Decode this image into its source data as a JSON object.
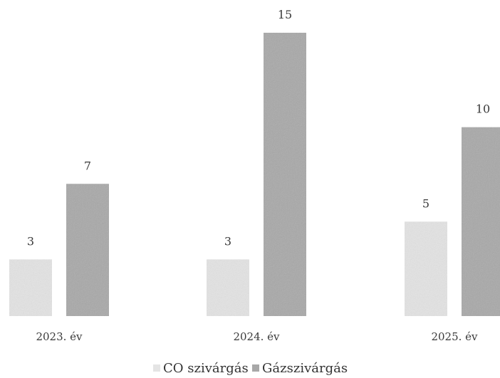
{
  "chart_data": {
    "type": "bar",
    "title": "",
    "xlabel": "",
    "ylabel": "",
    "categories": [
      "2023. év",
      "2024. év",
      "2025. év"
    ],
    "series": [
      {
        "name": "CO szivárgás",
        "values": [
          3,
          3,
          5
        ],
        "color": "#e4e4e4"
      },
      {
        "name": "Gázszivárgás",
        "values": [
          7,
          15,
          10
        ],
        "color": "#a8a8a8"
      }
    ],
    "ylim": [
      0,
      15
    ],
    "grid": false,
    "legend_position": "bottom-center",
    "data_labels": true
  }
}
